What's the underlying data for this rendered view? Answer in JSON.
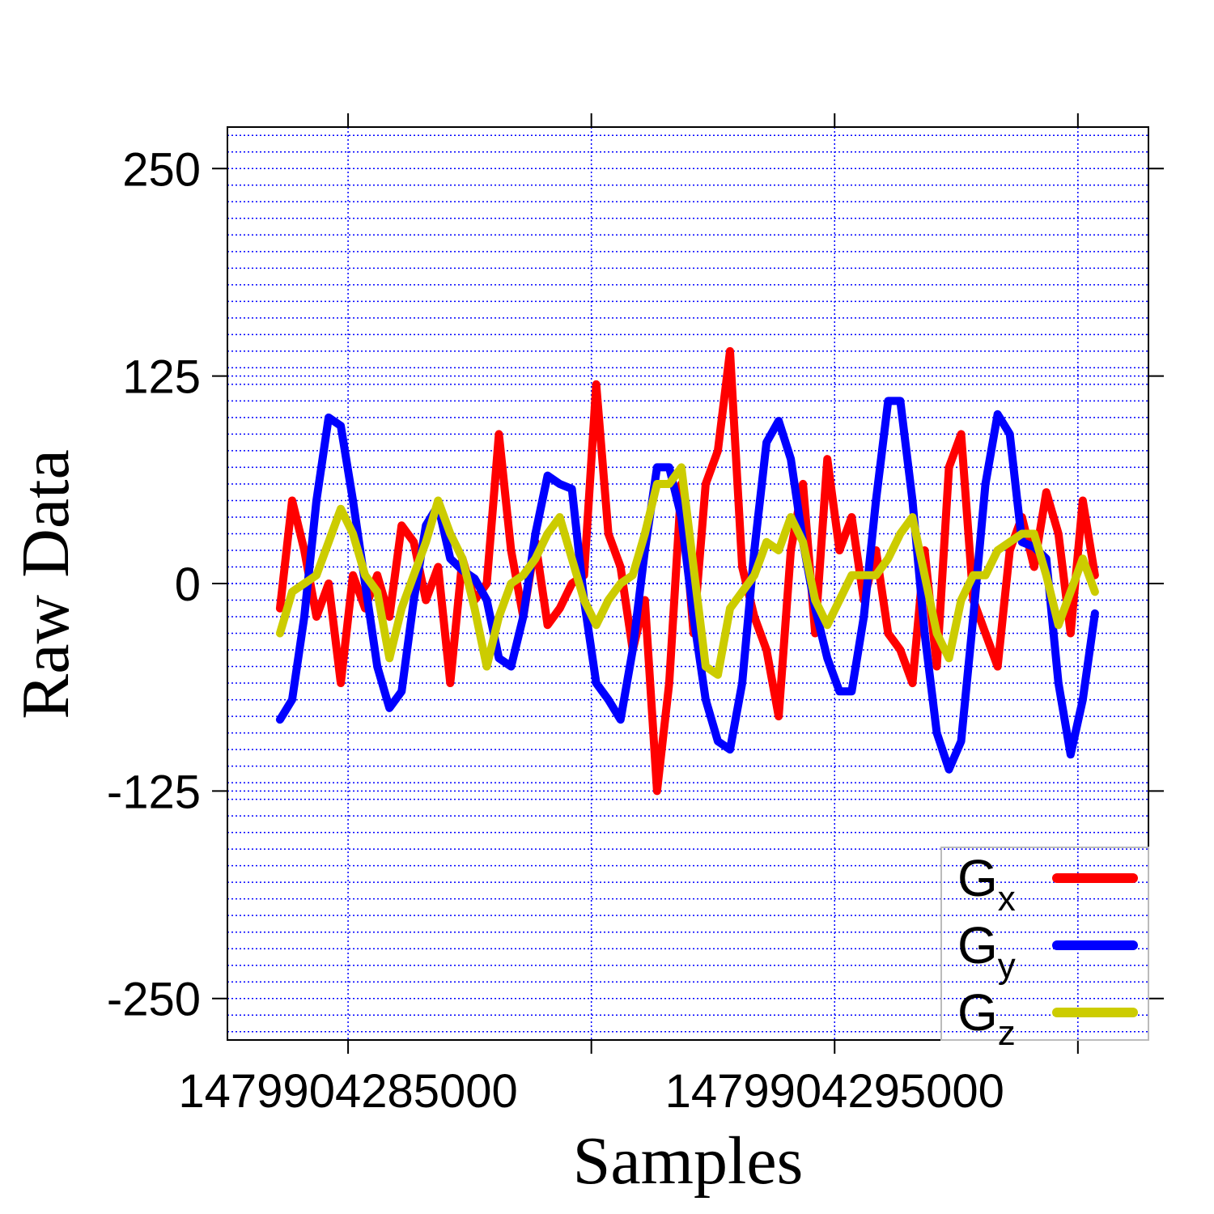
{
  "chart_data": {
    "type": "line",
    "xlabel": "Samples",
    "ylabel": "Raw Data",
    "x": [
      1479904283600,
      1479904283850,
      1479904284100,
      1479904284350,
      1479904284600,
      1479904284850,
      1479904285100,
      1479904285350,
      1479904285600,
      1479904285850,
      1479904286100,
      1479904286350,
      1479904286600,
      1479904286850,
      1479904287100,
      1479904287350,
      1479904287600,
      1479904287850,
      1479904288100,
      1479904288350,
      1479904288600,
      1479904288850,
      1479904289100,
      1479904289350,
      1479904289600,
      1479904289850,
      1479904290100,
      1479904290350,
      1479904290600,
      1479904290850,
      1479904291100,
      1479904291350,
      1479904291600,
      1479904291850,
      1479904292100,
      1479904292350,
      1479904292600,
      1479904292850,
      1479904293100,
      1479904293350,
      1479904293600,
      1479904293850,
      1479904294100,
      1479904294350,
      1479904294600,
      1479904294850,
      1479904295100,
      1479904295350,
      1479904295600,
      1479904295850,
      1479904296100,
      1479904296350,
      1479904296600,
      1479904296850,
      1479904297100,
      1479904297350,
      1479904297600,
      1479904297850,
      1479904298100,
      1479904298350,
      1479904298600,
      1479904298850,
      1479904299100,
      1479904299350,
      1479904299600,
      1479904299850,
      1479904300100,
      1479904300350
    ],
    "series": [
      {
        "name": "Gx",
        "color": "#ff0000",
        "values": [
          -15,
          50,
          20,
          -20,
          0,
          -60,
          5,
          -15,
          5,
          -20,
          35,
          25,
          -10,
          10,
          -60,
          15,
          -10,
          0,
          90,
          20,
          -20,
          25,
          -25,
          -15,
          0,
          5,
          120,
          30,
          10,
          -40,
          -10,
          -125,
          -60,
          60,
          -30,
          60,
          80,
          140,
          10,
          -20,
          -40,
          -80,
          20,
          60,
          -30,
          75,
          20,
          40,
          -10,
          20,
          -30,
          -40,
          -60,
          20,
          -50,
          70,
          90,
          -10,
          -30,
          -50,
          20,
          40,
          10,
          55,
          30,
          -30,
          50,
          5
        ]
      },
      {
        "name": "Gy",
        "color": "#0000ff",
        "values": [
          -82,
          -70,
          -20,
          50,
          100,
          95,
          50,
          0,
          -50,
          -75,
          -65,
          -10,
          35,
          47,
          15,
          8,
          3,
          -10,
          -45,
          -50,
          -20,
          30,
          65,
          60,
          57,
          -10,
          -60,
          -70,
          -82,
          -40,
          20,
          70,
          70,
          40,
          -20,
          -70,
          -95,
          -100,
          -60,
          20,
          85,
          98,
          75,
          25,
          -15,
          -45,
          -65,
          -65,
          -20,
          50,
          110,
          110,
          50,
          -30,
          -90,
          -112,
          -95,
          -20,
          60,
          102,
          90,
          25,
          22,
          15,
          -60,
          -103,
          -70,
          -18
        ]
      },
      {
        "name": "Gz",
        "color": "#cccc00",
        "values": [
          -30,
          -5,
          0,
          5,
          25,
          45,
          30,
          5,
          -5,
          -45,
          -15,
          5,
          25,
          50,
          30,
          15,
          -15,
          -50,
          -20,
          0,
          5,
          15,
          30,
          40,
          15,
          -10,
          -25,
          -10,
          0,
          5,
          30,
          60,
          60,
          70,
          10,
          -50,
          -55,
          -15,
          -5,
          5,
          25,
          20,
          40,
          25,
          -10,
          -25,
          -10,
          5,
          5,
          5,
          15,
          30,
          40,
          5,
          -30,
          -45,
          -10,
          5,
          5,
          20,
          25,
          30,
          30,
          5,
          -25,
          -5,
          15,
          -5
        ]
      }
    ],
    "xlim": [
      1479904282520,
      1479904301450
    ],
    "xticks": [
      1479904285000,
      {
        "value": 1479904290000,
        "label": null
      },
      1479904295000,
      {
        "value": 1479904300000,
        "label": null
      }
    ],
    "ylim": [
      -275,
      275
    ],
    "yticks": [
      -250,
      -125,
      0,
      125,
      250
    ],
    "minor_grid_step": 10,
    "grid": true,
    "legend": "bottom-right"
  }
}
